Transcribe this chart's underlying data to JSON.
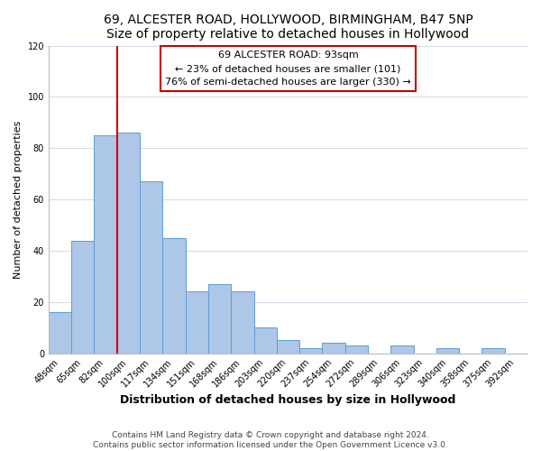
{
  "title": "69, ALCESTER ROAD, HOLLYWOOD, BIRMINGHAM, B47 5NP",
  "subtitle": "Size of property relative to detached houses in Hollywood",
  "xlabel": "Distribution of detached houses by size in Hollywood",
  "ylabel": "Number of detached properties",
  "bar_labels": [
    "48sqm",
    "65sqm",
    "82sqm",
    "100sqm",
    "117sqm",
    "134sqm",
    "151sqm",
    "168sqm",
    "186sqm",
    "203sqm",
    "220sqm",
    "237sqm",
    "254sqm",
    "272sqm",
    "289sqm",
    "306sqm",
    "323sqm",
    "340sqm",
    "358sqm",
    "375sqm",
    "392sqm"
  ],
  "bar_heights": [
    16,
    44,
    85,
    86,
    67,
    45,
    24,
    27,
    24,
    10,
    5,
    2,
    4,
    3,
    0,
    3,
    0,
    2,
    0,
    2,
    0
  ],
  "bar_color": "#aec6e8",
  "bar_edge_color": "#5a9fd4",
  "vline_color": "#cc0000",
  "annotation_line1": "69 ALCESTER ROAD: 93sqm",
  "annotation_line2": "← 23% of detached houses are smaller (101)",
  "annotation_line3": "76% of semi-detached houses are larger (330) →",
  "box_edge_color": "#cc0000",
  "ylim": [
    0,
    120
  ],
  "yticks": [
    0,
    20,
    40,
    60,
    80,
    100,
    120
  ],
  "grid_color": "#d4dce8",
  "footer_line1": "Contains HM Land Registry data © Crown copyright and database right 2024.",
  "footer_line2": "Contains public sector information licensed under the Open Government Licence v3.0.",
  "title_fontsize": 10,
  "xlabel_fontsize": 9,
  "ylabel_fontsize": 8,
  "tick_fontsize": 7,
  "annotation_fontsize": 8,
  "footer_fontsize": 6.5
}
